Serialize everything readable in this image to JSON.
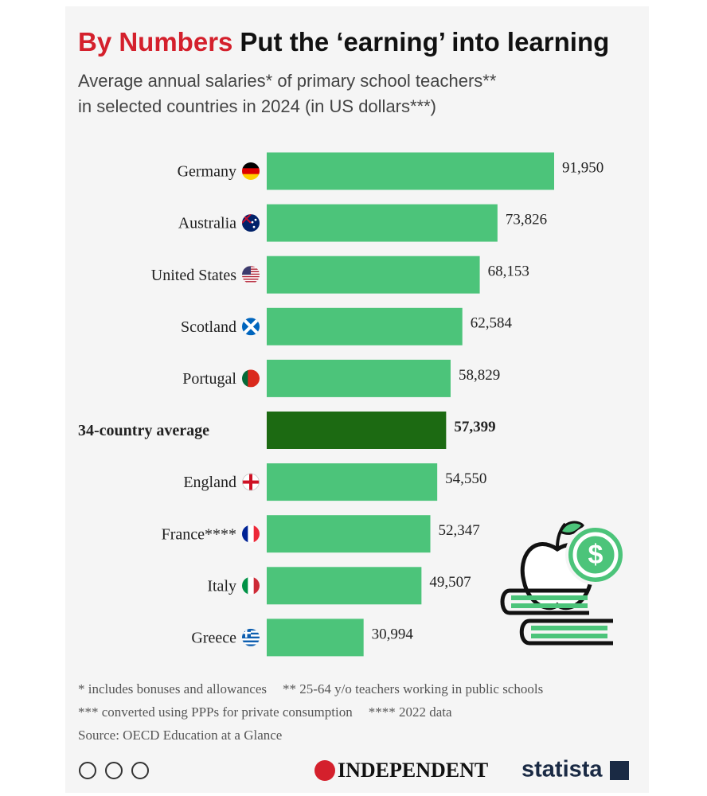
{
  "kicker": "By Numbers",
  "chart_data": {
    "type": "bar",
    "orientation": "horizontal",
    "title": "Put the ‘earning’ into learning",
    "subtitle": [
      "Average annual salaries* of primary school teachers**",
      "in selected countries in 2024 (in US dollars***)"
    ],
    "categories": [
      "Germany",
      "Australia",
      "United States",
      "Scotland",
      "Portugal",
      "34-country average",
      "England",
      "France****",
      "Italy",
      "Greece"
    ],
    "values": [
      91950,
      73826,
      68153,
      62584,
      58829,
      57399,
      54550,
      52347,
      49507,
      30994
    ],
    "value_labels": [
      "91,950",
      "73,826",
      "68,153",
      "62,584",
      "58,829",
      "57,399",
      "54,550",
      "52,347",
      "49,507",
      "30,994"
    ],
    "colors": [
      "#4cc47a",
      "#4cc47a",
      "#4cc47a",
      "#4cc47a",
      "#4cc47a",
      "#1c6a12",
      "#4cc47a",
      "#4cc47a",
      "#4cc47a",
      "#4cc47a"
    ]
  },
  "notes": [
    "* includes bonuses and allowances",
    "** 25-64 y/o teachers working in public schools",
    "*** converted using PPPs for private consumption",
    "**** 2022 data"
  ],
  "source": "Source: OECD Education at a Glance",
  "logos": [
    "INDEPENDENT",
    "statista"
  ]
}
